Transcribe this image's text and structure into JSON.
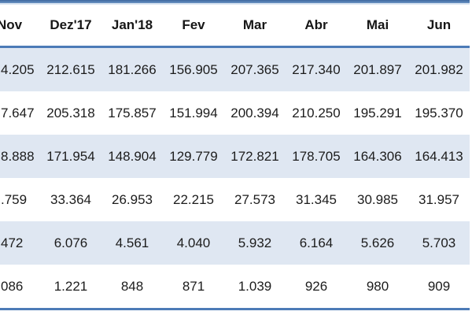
{
  "table": {
    "columns": [
      "Nov",
      "Dez'17",
      "Jan'18",
      "Fev",
      "Mar",
      "Abr",
      "Mai",
      "Jun"
    ],
    "rows": [
      [
        "4.205",
        "212.615",
        "181.266",
        "156.905",
        "207.365",
        "217.340",
        "201.897",
        "201.982"
      ],
      [
        "7.647",
        "205.318",
        "175.857",
        "151.994",
        "200.394",
        "210.250",
        "195.291",
        "195.370"
      ],
      [
        "8.888",
        "171.954",
        "148.904",
        "129.779",
        "172.821",
        "178.705",
        "164.306",
        "164.413"
      ],
      [
        ".759",
        "33.364",
        "26.953",
        "22.215",
        "27.573",
        "31.345",
        "30.985",
        "31.957"
      ],
      [
        "472",
        "6.076",
        "4.561",
        "4.040",
        "5.932",
        "6.164",
        "5.626",
        "5.703"
      ],
      [
        "086",
        "1.221",
        "848",
        "871",
        "1.039",
        "926",
        "980",
        "909"
      ]
    ]
  },
  "colors": {
    "accent_border": "#4c7bb7",
    "top_rule": "#3f689f",
    "band_row": "#dfe7f2",
    "text": "#1c1c1c"
  }
}
